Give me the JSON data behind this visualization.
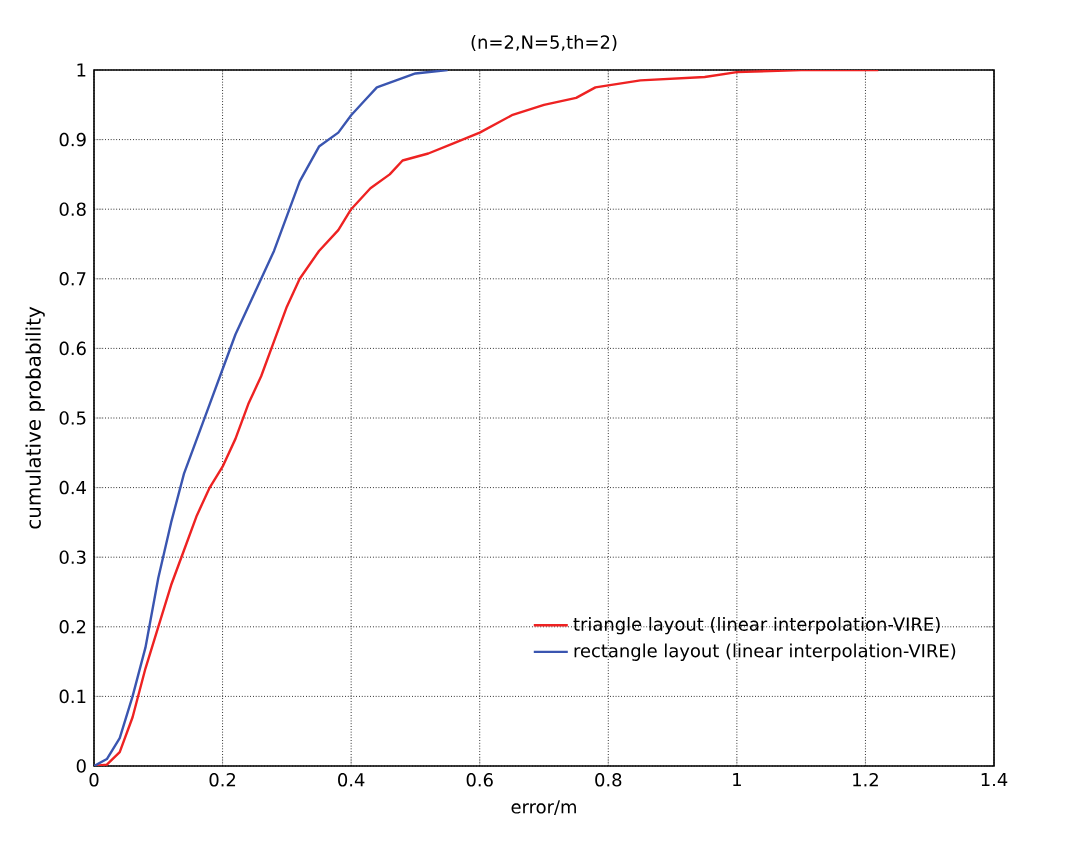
{
  "chart_data": {
    "type": "line",
    "title": "(n=2,N=5,th=2)",
    "xlabel": "error/m",
    "ylabel": "cumulative probability",
    "xlim": [
      0,
      1.4
    ],
    "ylim": [
      0,
      1
    ],
    "xticks": [
      0,
      0.2,
      0.4,
      0.6,
      0.8,
      1,
      1.2,
      1.4
    ],
    "yticks": [
      0,
      0.1,
      0.2,
      0.3,
      0.4,
      0.5,
      0.6,
      0.7,
      0.8,
      0.9,
      1
    ],
    "grid": true,
    "legend": "bottom right",
    "marker": "none",
    "line_style": "solid",
    "series": [
      {
        "name": "triangle layout (linear interpolation-VIRE)",
        "color": "#ee2222",
        "x": [
          0,
          0.02,
          0.04,
          0.06,
          0.08,
          0.1,
          0.12,
          0.14,
          0.16,
          0.18,
          0.2,
          0.22,
          0.24,
          0.26,
          0.28,
          0.3,
          0.32,
          0.35,
          0.38,
          0.4,
          0.43,
          0.46,
          0.48,
          0.52,
          0.56,
          0.6,
          0.65,
          0.7,
          0.75,
          0.78,
          0.85,
          0.95,
          1.0,
          1.1,
          1.22
        ],
        "values": [
          0,
          0.002,
          0.02,
          0.07,
          0.14,
          0.2,
          0.26,
          0.31,
          0.36,
          0.4,
          0.43,
          0.47,
          0.52,
          0.56,
          0.61,
          0.66,
          0.7,
          0.74,
          0.77,
          0.8,
          0.83,
          0.85,
          0.87,
          0.88,
          0.895,
          0.91,
          0.935,
          0.95,
          0.96,
          0.975,
          0.985,
          0.99,
          0.997,
          1.0,
          1.0
        ]
      },
      {
        "name": "rectangle layout (linear interpolation-VIRE)",
        "color": "#3a55b0",
        "x": [
          0,
          0.02,
          0.04,
          0.06,
          0.08,
          0.1,
          0.12,
          0.14,
          0.16,
          0.18,
          0.2,
          0.22,
          0.25,
          0.28,
          0.3,
          0.32,
          0.35,
          0.38,
          0.4,
          0.42,
          0.44,
          0.47,
          0.5,
          0.55
        ],
        "values": [
          0,
          0.01,
          0.04,
          0.1,
          0.17,
          0.27,
          0.35,
          0.42,
          0.47,
          0.52,
          0.57,
          0.62,
          0.68,
          0.74,
          0.79,
          0.84,
          0.89,
          0.91,
          0.935,
          0.955,
          0.975,
          0.985,
          0.995,
          1.0
        ]
      }
    ]
  }
}
